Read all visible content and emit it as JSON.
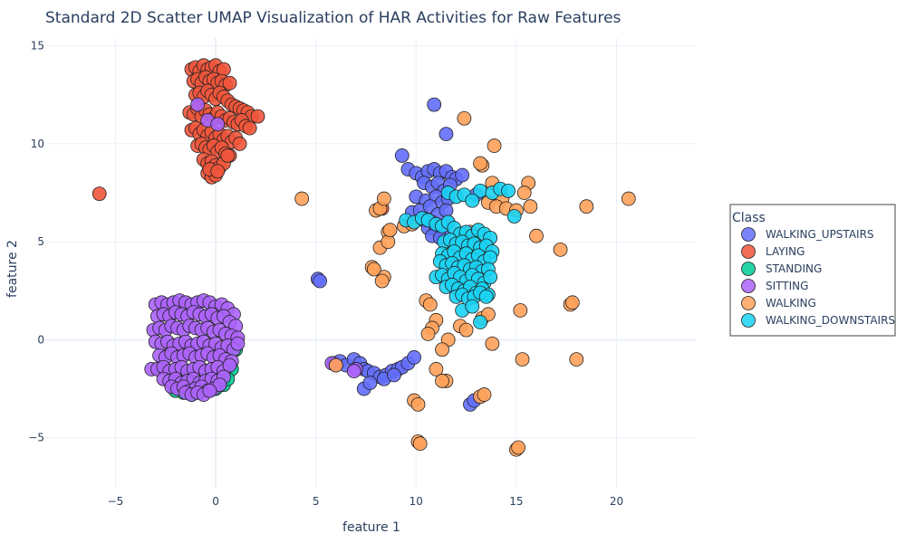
{
  "chart_data": {
    "type": "scatter",
    "title": "Standard 2D Scatter UMAP Visualization of HAR Activities for Raw Features",
    "xlabel": "feature 1",
    "ylabel": "feature 2",
    "xlim": [
      -8.5,
      24
    ],
    "ylim": [
      -7.6,
      15.4
    ],
    "xticks": [
      -5,
      0,
      5,
      10,
      15,
      20
    ],
    "yticks": [
      -5,
      0,
      5,
      10,
      15
    ],
    "xtick_labels": [
      "−5",
      "0",
      "5",
      "10",
      "15",
      "20"
    ],
    "ytick_labels": [
      "−5",
      "0",
      "5",
      "10",
      "15"
    ],
    "grid": true,
    "legend": {
      "title": "Class",
      "position": "right"
    },
    "series": [
      {
        "name": "WALKING_UPSTAIRS",
        "color": "#636efa",
        "x": [
          10.9,
          11.5,
          9.3,
          9.6,
          10.0,
          10.3,
          10.6,
          10.9,
          11.2,
          11.5,
          11.8,
          12.0,
          12.3,
          10.4,
          10.8,
          11.1,
          11.4,
          11.7,
          10.0,
          10.5,
          11.0,
          11.3,
          11.6,
          9.8,
          10.2,
          10.7,
          11.1,
          11.5,
          10.4,
          10.8,
          11.2,
          11.6,
          10.6,
          11.0,
          11.4,
          10.8,
          11.2,
          5.1,
          5.2,
          5.9,
          6.2,
          6.5,
          6.9,
          7.2,
          7.4,
          7.6,
          7.9,
          8.2,
          8.5,
          8.8,
          9.1,
          9.3,
          9.6,
          9.9,
          7.4,
          7.7,
          8.4,
          8.9,
          12.7,
          12.9,
          13.0
        ],
        "y": [
          12.0,
          10.5,
          9.4,
          8.7,
          8.5,
          8.3,
          8.6,
          8.7,
          8.5,
          8.6,
          8.3,
          8.2,
          8.4,
          8.0,
          7.8,
          8.0,
          7.6,
          7.9,
          7.3,
          7.1,
          7.3,
          7.0,
          7.2,
          6.5,
          6.6,
          6.8,
          6.4,
          6.6,
          6.1,
          6.0,
          5.8,
          6.0,
          5.7,
          5.6,
          5.5,
          5.3,
          5.2,
          3.1,
          3.0,
          -1.2,
          -1.1,
          -1.3,
          -1.0,
          -1.2,
          -1.5,
          -1.6,
          -1.7,
          -1.9,
          -1.8,
          -1.6,
          -1.5,
          -1.4,
          -1.2,
          -0.9,
          -2.5,
          -2.2,
          -2.0,
          -1.8,
          -3.3,
          -3.1,
          7.4
        ]
      },
      {
        "name": "LAYING",
        "color": "#ef553b",
        "x": [
          -5.8,
          -1.2,
          -1.0,
          -0.8,
          -0.6,
          -0.4,
          -0.2,
          0.0,
          0.2,
          0.4,
          -1.1,
          -0.9,
          -0.7,
          -0.5,
          -0.3,
          -0.1,
          0.1,
          0.3,
          0.5,
          0.7,
          -1.0,
          -0.8,
          -0.6,
          -0.4,
          -0.2,
          0.0,
          0.2,
          0.4,
          0.6,
          0.8,
          1.0,
          1.2,
          1.4,
          1.6,
          1.8,
          2.1,
          -1.3,
          -1.1,
          -0.9,
          -0.7,
          -0.5,
          -0.3,
          -0.1,
          0.1,
          0.3,
          0.5,
          0.7,
          0.9,
          1.1,
          1.3,
          1.5,
          1.7,
          -1.2,
          -1.0,
          -0.8,
          -0.6,
          -0.4,
          -0.2,
          0.0,
          0.2,
          0.4,
          0.6,
          0.8,
          1.0,
          1.2,
          -0.9,
          -0.7,
          -0.5,
          -0.3,
          -0.1,
          0.1,
          0.3,
          0.5,
          0.7,
          -0.6,
          -0.4,
          -0.2,
          0.0,
          0.2,
          0.4,
          -0.4,
          -0.2,
          0.0,
          0.6,
          -0.3,
          0.1,
          8.3
        ],
        "y": [
          7.45,
          13.8,
          13.9,
          13.7,
          14.0,
          13.8,
          13.9,
          14.0,
          13.7,
          13.8,
          13.2,
          13.3,
          13.1,
          13.4,
          13.2,
          13.3,
          13.1,
          13.2,
          13.0,
          13.1,
          12.5,
          12.6,
          12.4,
          12.7,
          12.5,
          12.3,
          12.6,
          12.4,
          12.2,
          12.0,
          11.9,
          11.8,
          11.7,
          11.6,
          11.4,
          11.4,
          11.6,
          11.5,
          11.8,
          11.4,
          11.7,
          11.5,
          11.3,
          11.6,
          11.4,
          11.2,
          11.3,
          11.1,
          11.0,
          11.2,
          10.9,
          10.8,
          10.7,
          10.8,
          10.5,
          10.7,
          10.4,
          10.6,
          10.3,
          10.5,
          10.2,
          10.4,
          10.1,
          10.3,
          10.0,
          9.9,
          10.0,
          9.8,
          9.7,
          9.9,
          9.6,
          9.8,
          9.5,
          9.4,
          9.2,
          9.0,
          9.1,
          8.9,
          8.8,
          9.0,
          8.5,
          8.3,
          8.4,
          9.4,
          8.7,
          8.6,
          6.7
        ]
      },
      {
        "name": "STANDING",
        "color": "#00cc96",
        "x": [
          -2.0,
          -1.6,
          -1.2,
          -0.8,
          -0.4,
          0.0,
          0.4,
          0.8,
          1.0,
          -1.8,
          -1.4,
          -1.0,
          -0.6,
          -0.2,
          0.2,
          0.6,
          -1.5,
          -1.1,
          -0.7,
          -0.3,
          0.1
        ],
        "y": [
          -2.6,
          -2.7,
          -2.8,
          -2.7,
          -2.6,
          -2.5,
          -2.3,
          -1.5,
          -0.5,
          -2.4,
          -2.5,
          -2.6,
          -2.5,
          -2.4,
          -2.2,
          -2.0,
          -2.1,
          -2.2,
          -2.3,
          -2.1,
          -1.9
        ]
      },
      {
        "name": "SITTING",
        "color": "#ab63fa",
        "x": [
          -3.0,
          -2.7,
          -2.4,
          -2.1,
          -1.8,
          -1.5,
          -1.2,
          -0.9,
          -0.6,
          -0.3,
          0.0,
          0.3,
          0.6,
          0.9,
          -2.9,
          -2.6,
          -2.3,
          -2.0,
          -1.7,
          -1.4,
          -1.1,
          -0.8,
          -0.5,
          -0.2,
          0.1,
          0.4,
          0.7,
          1.0,
          -3.1,
          -2.8,
          -2.5,
          -2.2,
          -1.9,
          -1.6,
          -1.3,
          -1.0,
          -0.7,
          -0.4,
          -0.1,
          0.2,
          0.5,
          0.8,
          1.1,
          -3.0,
          -2.7,
          -2.4,
          -2.1,
          -1.8,
          -1.5,
          -1.2,
          -0.9,
          -0.6,
          -0.3,
          0.0,
          0.3,
          0.6,
          0.9,
          -2.8,
          -2.5,
          -2.2,
          -1.9,
          -1.6,
          -1.3,
          -1.0,
          -0.7,
          -0.4,
          -0.1,
          0.2,
          0.5,
          0.8,
          -3.2,
          -2.9,
          -2.6,
          -2.3,
          -2.0,
          -1.7,
          -1.4,
          -1.1,
          -0.8,
          -0.5,
          -0.2,
          0.1,
          0.4,
          0.7,
          -2.6,
          -2.3,
          -2.0,
          -1.7,
          -1.4,
          -1.1,
          -0.8,
          -0.5,
          -0.2,
          0.1,
          0.4,
          -2.2,
          -1.9,
          -1.6,
          -1.3,
          -1.0,
          -0.7,
          -0.4,
          -0.1,
          0.2,
          -1.5,
          -1.2,
          -0.9,
          -0.6,
          -0.3,
          -0.9,
          -0.4,
          0.1,
          5.8,
          6.0,
          7.0,
          6.9,
          1.1
        ],
        "y": [
          1.8,
          1.9,
          1.8,
          1.9,
          2.0,
          1.9,
          1.8,
          1.9,
          2.0,
          1.9,
          1.7,
          1.8,
          1.6,
          1.3,
          1.2,
          1.3,
          1.2,
          1.4,
          1.3,
          1.2,
          1.4,
          1.3,
          1.2,
          1.3,
          1.1,
          1.2,
          0.9,
          0.7,
          0.5,
          0.6,
          0.5,
          0.7,
          0.6,
          0.5,
          0.7,
          0.6,
          0.5,
          0.6,
          0.4,
          0.5,
          0.3,
          0.2,
          0.1,
          -0.1,
          -0.2,
          -0.1,
          -0.3,
          -0.2,
          -0.1,
          -0.3,
          -0.2,
          -0.1,
          -0.3,
          -0.2,
          -0.4,
          -0.3,
          -0.5,
          -0.8,
          -0.9,
          -0.7,
          -0.9,
          -0.8,
          -0.7,
          -0.9,
          -0.8,
          -0.7,
          -0.9,
          -0.8,
          -1.0,
          -1.1,
          -1.5,
          -1.5,
          -1.4,
          -1.6,
          -1.5,
          -1.4,
          -1.6,
          -1.5,
          -1.4,
          -1.6,
          -1.5,
          -1.4,
          -1.6,
          -1.3,
          -2.0,
          -2.1,
          -2.0,
          -2.2,
          -2.1,
          -2.0,
          -2.2,
          -2.1,
          -2.0,
          -2.1,
          -1.9,
          -2.4,
          -2.5,
          -2.4,
          -2.6,
          -2.5,
          -2.4,
          -2.6,
          -2.5,
          -2.3,
          -2.7,
          -2.8,
          -2.7,
          -2.8,
          -2.6,
          12.0,
          11.2,
          11.0,
          -1.2,
          -1.3,
          -1.5,
          -1.6,
          -0.2
        ]
      },
      {
        "name": "WALKING",
        "color": "#ffa15a",
        "x": [
          12.4,
          13.9,
          13.3,
          13.2,
          13.8,
          15.6,
          15.4,
          14.3,
          13.6,
          14.0,
          14.5,
          15.0,
          15.7,
          8.0,
          8.2,
          8.4,
          8.6,
          4.3,
          16.0,
          18.5,
          20.6,
          17.2,
          8.2,
          8.6,
          7.8,
          8.4,
          10.5,
          10.7,
          11.0,
          10.8,
          10.6,
          13.8,
          15.2,
          17.7,
          17.8,
          12.2,
          12.5,
          13.3,
          13.6,
          11.6,
          11.3,
          11.5,
          11.0,
          15.3,
          18.0,
          11.3,
          9.9,
          10.1,
          13.2,
          13.4,
          10.1,
          10.2,
          15.0,
          15.1,
          12.4,
          12.7,
          8.3,
          7.9,
          6.0,
          9.4,
          9.8,
          8.7
        ],
        "y": [
          11.3,
          9.9,
          8.9,
          9.0,
          8.0,
          8.0,
          7.5,
          7.2,
          7.0,
          6.8,
          6.7,
          6.6,
          6.8,
          6.6,
          6.7,
          7.2,
          5.5,
          7.2,
          5.3,
          6.8,
          7.2,
          4.6,
          4.7,
          5.0,
          3.7,
          3.2,
          2.0,
          1.8,
          1.0,
          0.6,
          0.3,
          -0.2,
          1.5,
          1.8,
          1.9,
          0.7,
          0.5,
          1.1,
          1.3,
          0.0,
          -0.5,
          -2.1,
          -1.5,
          -1.0,
          -1.0,
          -2.1,
          -3.1,
          -3.3,
          -2.9,
          -2.8,
          -5.2,
          -5.3,
          -5.6,
          -5.5,
          5.2,
          5.5,
          3.0,
          3.6,
          -1.3,
          5.8,
          5.9,
          5.6
        ]
      },
      {
        "name": "WALKING_DOWNSTAIRS",
        "color": "#19d3f3",
        "x": [
          13.2,
          13.8,
          14.2,
          14.6,
          14.9,
          11.6,
          12.0,
          12.4,
          12.8,
          9.5,
          9.9,
          10.3,
          10.6,
          11.0,
          11.3,
          11.6,
          11.9,
          12.2,
          12.5,
          12.8,
          13.1,
          13.4,
          13.7,
          11.4,
          11.7,
          12.0,
          12.3,
          12.6,
          12.9,
          13.2,
          13.5,
          13.8,
          11.3,
          11.6,
          11.9,
          12.2,
          12.5,
          12.8,
          13.1,
          13.4,
          13.7,
          11.2,
          11.5,
          11.8,
          12.1,
          12.4,
          12.7,
          13.0,
          13.3,
          13.6,
          11.0,
          11.3,
          11.6,
          11.9,
          12.2,
          12.5,
          12.8,
          13.1,
          13.4,
          13.7,
          11.5,
          11.8,
          12.1,
          12.4,
          12.7,
          13.0,
          13.3,
          13.6,
          12.0,
          12.3,
          12.6,
          12.9,
          13.2,
          13.5,
          12.3,
          12.8,
          13.2
        ],
        "y": [
          7.6,
          7.5,
          7.7,
          7.6,
          6.3,
          7.5,
          7.3,
          7.4,
          7.1,
          6.1,
          6.0,
          6.2,
          6.1,
          5.9,
          5.8,
          6.0,
          5.7,
          5.4,
          5.5,
          5.3,
          5.6,
          5.4,
          5.2,
          5.0,
          5.1,
          4.9,
          5.0,
          4.8,
          4.9,
          4.7,
          4.8,
          4.5,
          4.4,
          4.3,
          4.5,
          4.2,
          4.4,
          4.1,
          4.3,
          4.0,
          4.2,
          4.0,
          3.8,
          3.9,
          3.7,
          3.8,
          3.6,
          3.7,
          3.5,
          3.6,
          3.2,
          3.3,
          3.1,
          3.4,
          3.2,
          3.0,
          3.3,
          3.1,
          2.9,
          3.2,
          2.7,
          2.8,
          2.6,
          2.5,
          2.7,
          2.4,
          2.6,
          2.3,
          2.2,
          2.3,
          2.1,
          2.2,
          2.4,
          2.2,
          1.5,
          1.7,
          0.9
        ]
      }
    ]
  }
}
